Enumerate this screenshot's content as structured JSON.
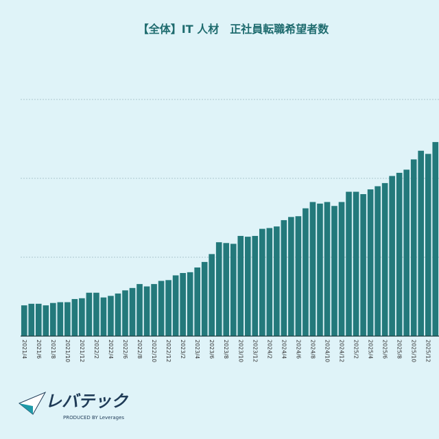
{
  "chart_data": {
    "type": "bar",
    "title": "【全体】IT 人材　正社員転職希望者数",
    "categories": [
      "2021/4",
      null,
      "2021/6",
      null,
      "2021/8",
      null,
      "2021/10",
      null,
      "2021/12",
      null,
      "2022/2",
      null,
      "2022/4",
      null,
      "2022/6",
      null,
      "2022/8",
      null,
      "2022/10",
      null,
      "2022/12",
      null,
      "2023/2",
      null,
      "2023/4",
      null,
      "2023/6",
      null,
      "2023/8",
      null,
      "2023/10",
      null,
      "2023/12",
      null,
      "2024/2",
      null,
      "2024/4",
      null,
      "2024/6",
      null,
      "2024/8",
      null,
      "2024/10",
      null,
      "2024/12",
      null,
      "2025/2",
      null,
      "2025/4",
      null,
      "2025/6",
      null,
      "2025/8",
      null,
      "2025/10",
      null,
      "2025/12",
      null
    ],
    "values": [
      0.39,
      0.41,
      0.41,
      0.39,
      0.42,
      0.43,
      0.43,
      0.47,
      0.48,
      0.55,
      0.55,
      0.49,
      0.51,
      0.54,
      0.58,
      0.61,
      0.66,
      0.63,
      0.66,
      0.7,
      0.71,
      0.77,
      0.8,
      0.81,
      0.87,
      0.94,
      1.04,
      1.19,
      1.18,
      1.17,
      1.27,
      1.26,
      1.27,
      1.36,
      1.37,
      1.39,
      1.47,
      1.51,
      1.52,
      1.62,
      1.7,
      1.68,
      1.7,
      1.65,
      1.7,
      1.83,
      1.83,
      1.8,
      1.86,
      1.9,
      1.94,
      2.03,
      2.07,
      2.11,
      2.24,
      2.35,
      2.31,
      2.46
    ],
    "color": "#23797b",
    "ylim": [
      0,
      3
    ],
    "yticks": [
      1,
      2,
      3
    ],
    "grid": true
  },
  "logo": {
    "name": "レバテック",
    "tagline": "PRODUCED BY Leverages"
  }
}
